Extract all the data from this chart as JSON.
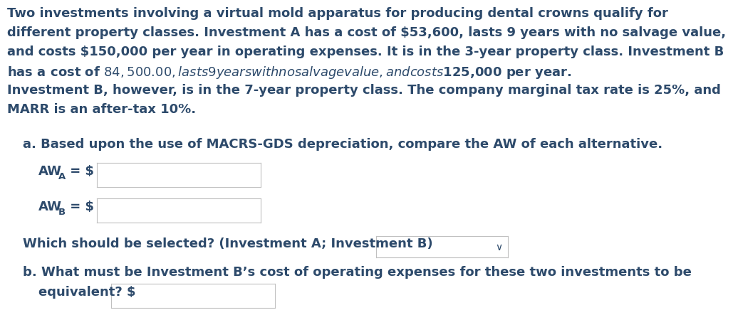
{
  "background_color": "#ffffff",
  "text_color": "#2d4a6b",
  "font_family": "DejaVu Sans",
  "para_lines": [
    "Two investments involving a virtual mold apparatus for producing dental crowns qualify for",
    "different property classes. Investment A has a cost of $53,600, lasts 9 years with no salvage value,",
    "and costs $150,000 per year in operating expenses. It is in the 3-year property class. Investment B",
    "has a cost of $84,500.00, lasts 9 years with no salvage value, and costs $125,000 per year.",
    "Investment B, however, is in the 7-year property class. The company marginal tax rate is 25%, and",
    "MARR is an after-tax 10%."
  ],
  "part_a_label": "a. Based upon the use of MACRS-GDS depreciation, compare the AW of each alternative.",
  "which_label": "Which should be selected? (Investment A; Investment B)",
  "part_b_line1": "b. What must be Investment B’s cost of operating expenses for these two investments to be",
  "part_b_line2": "equivalent? $",
  "input_box_color": "#ffffff",
  "input_box_border": "#c0c0c0",
  "font_size_main": 13.0,
  "font_size_sub": 9.5,
  "font_weight": "bold"
}
